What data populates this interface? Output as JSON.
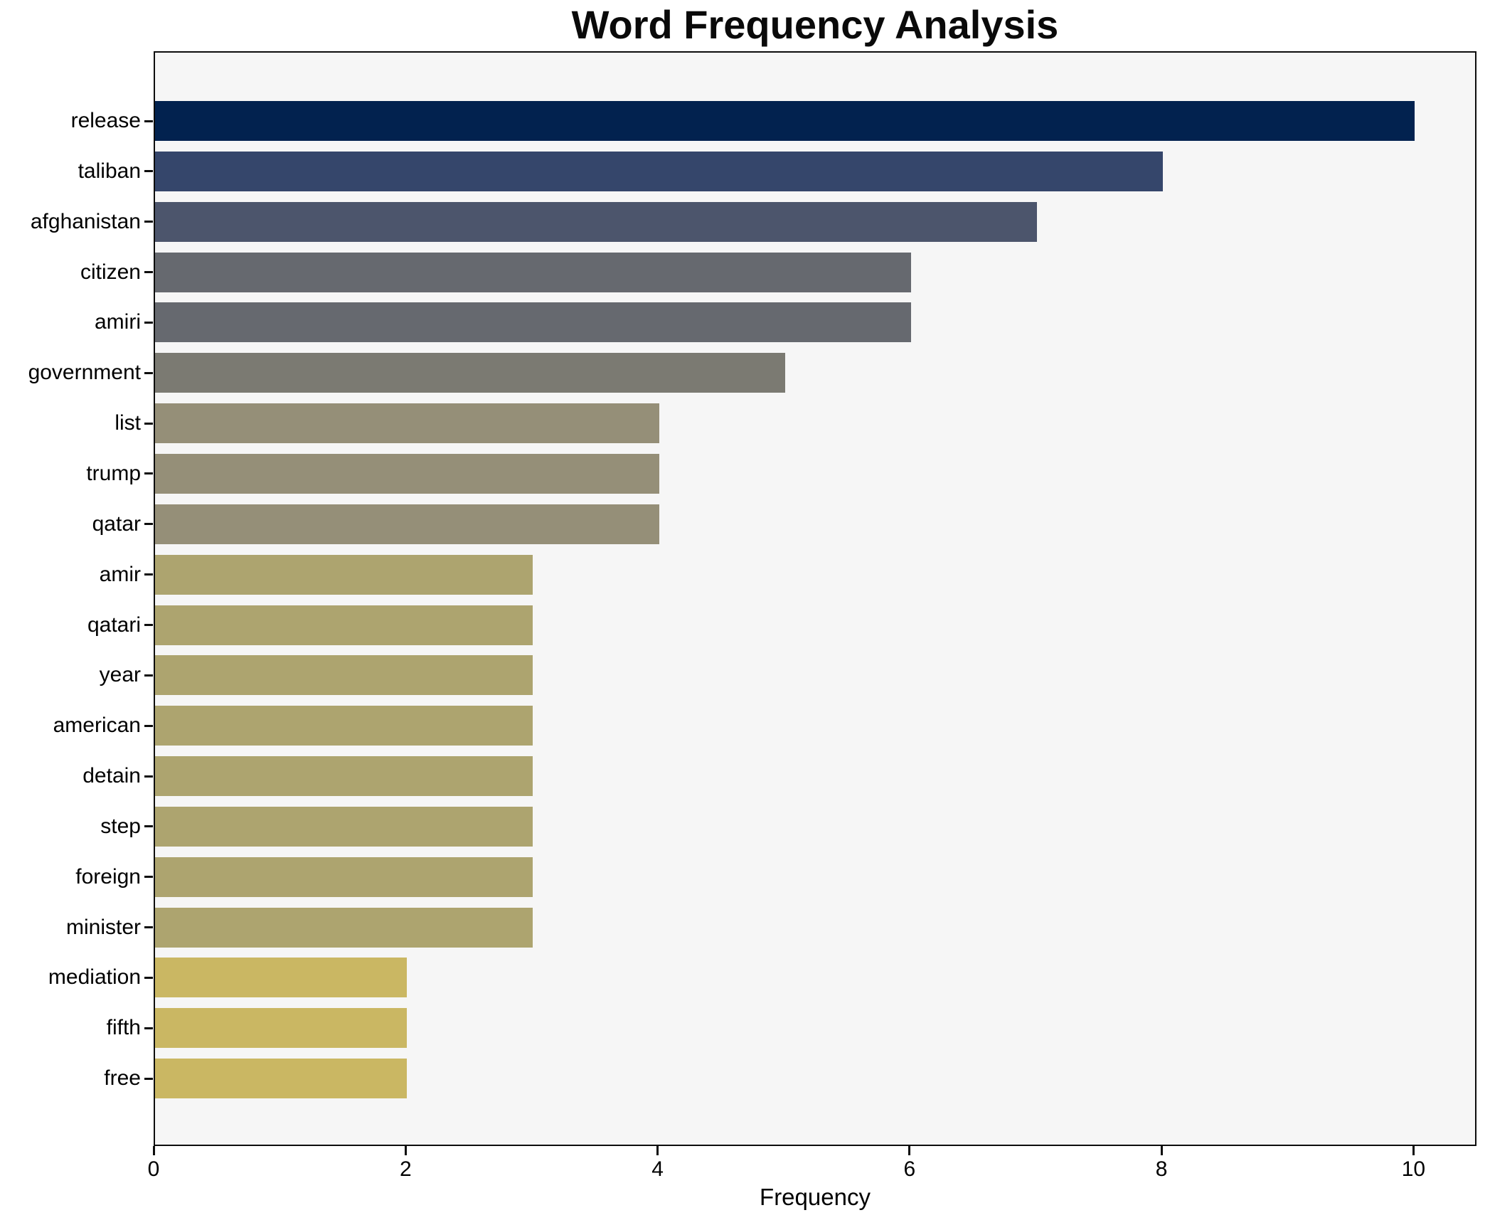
{
  "chart_data": {
    "type": "bar",
    "orientation": "horizontal",
    "title": "Word Frequency Analysis",
    "xlabel": "Frequency",
    "categories": [
      "release",
      "taliban",
      "afghanistan",
      "citizen",
      "amiri",
      "government",
      "list",
      "trump",
      "qatar",
      "amir",
      "qatari",
      "year",
      "american",
      "detain",
      "step",
      "foreign",
      "minister",
      "mediation",
      "fifth",
      "free"
    ],
    "values": [
      10,
      8,
      7,
      6,
      6,
      5,
      4,
      4,
      4,
      3,
      3,
      3,
      3,
      3,
      3,
      3,
      3,
      2,
      2,
      2
    ],
    "bar_colors": [
      "#02224f",
      "#35466b",
      "#4c556c",
      "#66696f",
      "#66696f",
      "#7b7a72",
      "#958f78",
      "#958f78",
      "#958f78",
      "#ada46f",
      "#ada46f",
      "#ada46f",
      "#ada46f",
      "#ada46f",
      "#ada46f",
      "#ada46f",
      "#ada46f",
      "#cab763",
      "#cab763",
      "#cab763"
    ],
    "x_ticks": [
      0,
      2,
      4,
      6,
      8,
      10
    ],
    "xlim": [
      0,
      10.5
    ],
    "grid": false,
    "legend": false,
    "plot_bg": "#f6f6f6",
    "figure_bg": "#ffffff",
    "spine_color": "#0d0d0d",
    "text_color": "#000000"
  }
}
